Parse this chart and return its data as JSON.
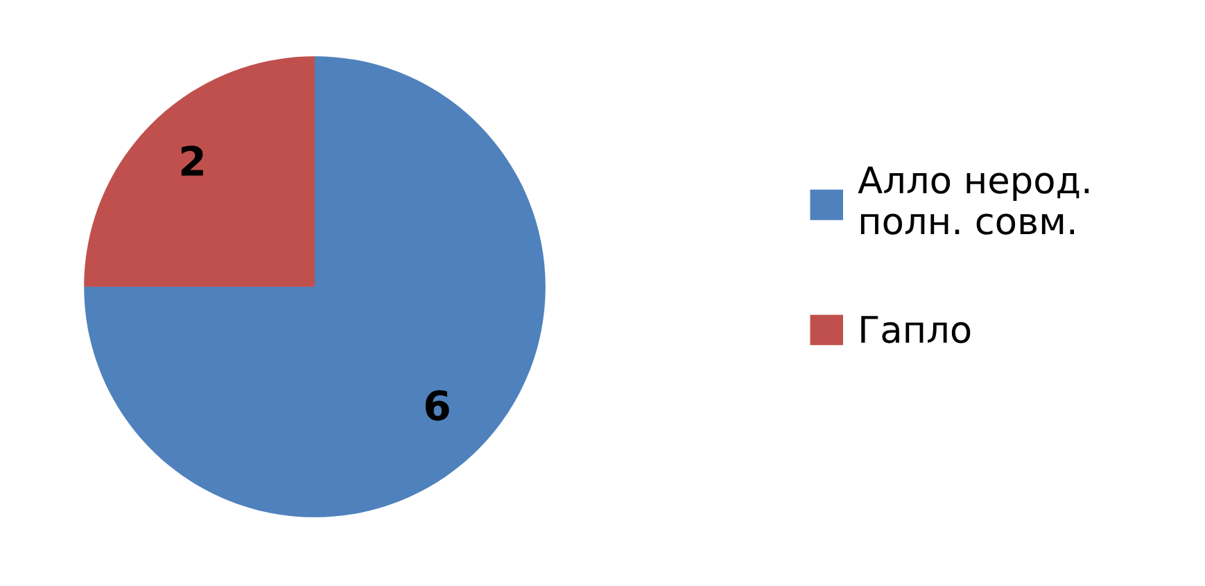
{
  "chart_data": {
    "type": "pie",
    "categories": [
      "Алло нерод.\nполн. совм.",
      "Гапло"
    ],
    "values": [
      6,
      2
    ],
    "colors": [
      "#4f81bd",
      "#c0504d"
    ],
    "data_labels": true,
    "legend": "right"
  }
}
